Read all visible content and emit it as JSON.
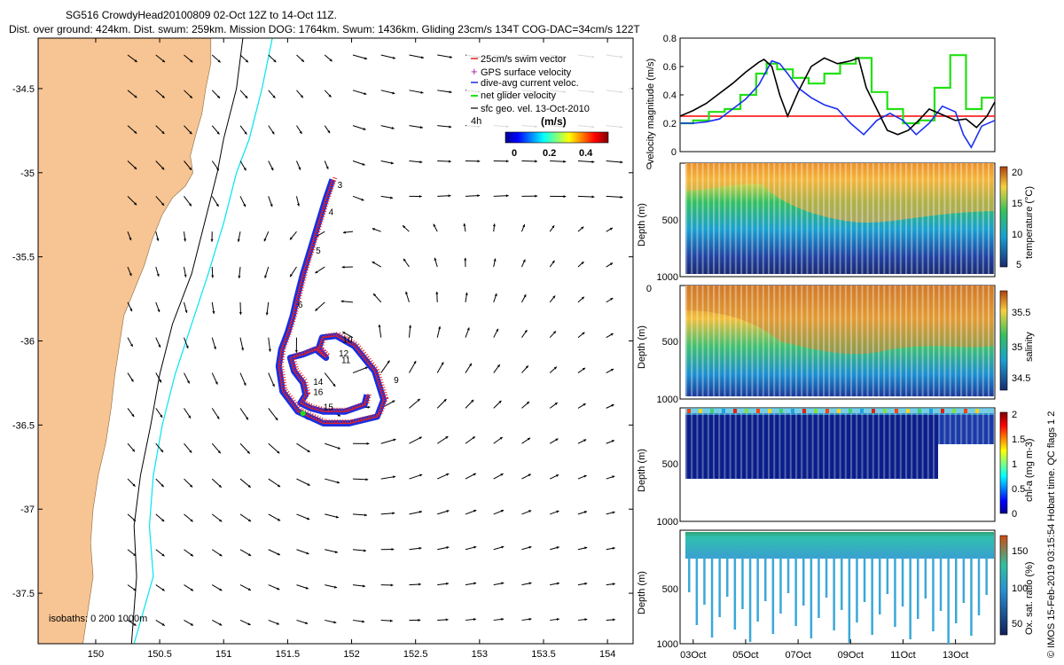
{
  "header": {
    "title_line1": "SG516 CrowdyHead20100809 02-Oct 12Z to 14-Oct 11Z.",
    "title_line2": "Dist. over ground: 424km. Dist. swum: 259km. Mission DOG: 1764km. Swum: 1436km. Gliding 23cm/s 134T COG-DAC=34cm/s 122T"
  },
  "colors": {
    "land": "#f7c493",
    "track": "#e8201c",
    "dive_avg": "#1a2fe0",
    "gps": "#a020a0",
    "net": "#22e014",
    "isobath_200": "#000000",
    "isobath_1000": "#00e5f0",
    "velocity_black": "#000000",
    "velocity_blue": "#1b2ef0",
    "velocity_green": "#22e014",
    "velocity_red": "#ff0000"
  },
  "chart_data": [
    {
      "type": "scatter",
      "name_role": "map",
      "xlim": [
        149.55,
        154.2
      ],
      "ylim": [
        -37.8,
        -34.2
      ],
      "x_ticks": [
        150,
        150.5,
        151,
        151.5,
        152,
        152.5,
        153,
        153.5,
        154
      ],
      "x_tick_labels": [
        "150",
        "150.5",
        "151",
        "151.5",
        "152",
        "152.5",
        "153",
        "153.5",
        "154"
      ],
      "y_ticks": [
        -34.5,
        -35,
        -35.5,
        -36,
        -36.5,
        -37,
        -37.5
      ],
      "y_tick_labels": [
        "-34.5",
        "-35",
        "-35.5",
        "-36",
        "-36.5",
        "-37",
        "-37.5"
      ],
      "legend": {
        "placement": "top-right",
        "entries": [
          {
            "label": "25cm/s swim vector",
            "color": "#e8201c"
          },
          {
            "label": "GPS surface velocity",
            "color": "#a020a0"
          },
          {
            "label": "dive-avg current veloc.",
            "color": "#1a2fe0"
          },
          {
            "label": "net glider velocity",
            "color": "#22e014"
          },
          {
            "label": "sfc geo. vel. 13-Oct-2010",
            "color": "#000000"
          }
        ],
        "prefix": "4h",
        "colorbar_title": "(m/s)",
        "colorbar_ticks": [
          "0",
          "0.2",
          "0.4"
        ]
      },
      "isobaths_label": "isobaths: 0   200  1000m",
      "coast": [
        [
          149.55,
          -34.2
        ],
        [
          150.9,
          -34.2
        ],
        [
          150.9,
          -34.35
        ],
        [
          150.86,
          -34.5
        ],
        [
          150.83,
          -34.65
        ],
        [
          150.78,
          -34.78
        ],
        [
          150.74,
          -34.9
        ],
        [
          150.76,
          -35.0
        ],
        [
          150.7,
          -35.08
        ],
        [
          150.6,
          -35.15
        ],
        [
          150.52,
          -35.25
        ],
        [
          150.44,
          -35.4
        ],
        [
          150.38,
          -35.55
        ],
        [
          150.3,
          -35.7
        ],
        [
          150.22,
          -35.85
        ],
        [
          150.19,
          -36.0
        ],
        [
          150.15,
          -36.2
        ],
        [
          150.12,
          -36.4
        ],
        [
          150.08,
          -36.6
        ],
        [
          150.02,
          -36.8
        ],
        [
          149.98,
          -37.0
        ],
        [
          149.96,
          -37.2
        ],
        [
          149.98,
          -37.4
        ],
        [
          149.95,
          -37.55
        ],
        [
          149.92,
          -37.7
        ],
        [
          149.9,
          -37.8
        ],
        [
          149.55,
          -37.8
        ]
      ],
      "isobath_200": [
        [
          151.15,
          -34.2
        ],
        [
          151.1,
          -34.5
        ],
        [
          151.0,
          -34.8
        ],
        [
          150.95,
          -35.0
        ],
        [
          150.85,
          -35.3
        ],
        [
          150.75,
          -35.6
        ],
        [
          150.6,
          -35.9
        ],
        [
          150.5,
          -36.2
        ],
        [
          150.43,
          -36.5
        ],
        [
          150.35,
          -36.8
        ],
        [
          150.3,
          -37.1
        ],
        [
          150.32,
          -37.4
        ],
        [
          150.28,
          -37.8
        ]
      ],
      "isobath_1000": [
        [
          151.38,
          -34.2
        ],
        [
          151.3,
          -34.5
        ],
        [
          151.2,
          -34.8
        ],
        [
          151.1,
          -35.0
        ],
        [
          151.0,
          -35.3
        ],
        [
          150.88,
          -35.6
        ],
        [
          150.75,
          -35.9
        ],
        [
          150.62,
          -36.2
        ],
        [
          150.52,
          -36.5
        ],
        [
          150.45,
          -36.8
        ],
        [
          150.42,
          -37.1
        ],
        [
          150.45,
          -37.4
        ],
        [
          150.3,
          -37.8
        ]
      ],
      "track": [
        [
          151.85,
          -35.04
        ],
        [
          151.8,
          -35.15
        ],
        [
          151.74,
          -35.3
        ],
        [
          151.68,
          -35.45
        ],
        [
          151.62,
          -35.6
        ],
        [
          151.57,
          -35.75
        ],
        [
          151.54,
          -35.85
        ],
        [
          151.5,
          -35.95
        ],
        [
          151.45,
          -36.05
        ],
        [
          151.43,
          -36.15
        ],
        [
          151.46,
          -36.3
        ],
        [
          151.58,
          -36.42
        ],
        [
          151.78,
          -36.49
        ],
        [
          151.98,
          -36.49
        ],
        [
          152.2,
          -36.45
        ],
        [
          152.25,
          -36.35
        ],
        [
          152.18,
          -36.18
        ],
        [
          152.02,
          -36.03
        ],
        [
          151.88,
          -35.97
        ],
        [
          151.77,
          -35.98
        ],
        [
          151.74,
          -36.05
        ],
        [
          151.8,
          -36.1
        ],
        [
          151.72,
          -36.05
        ],
        [
          151.62,
          -36.08
        ],
        [
          151.52,
          -36.1
        ],
        [
          151.55,
          -36.18
        ],
        [
          151.62,
          -36.25
        ],
        [
          151.64,
          -36.32
        ],
        [
          151.6,
          -36.37
        ],
        [
          151.68,
          -36.4
        ],
        [
          151.78,
          -36.42
        ],
        [
          151.95,
          -36.42
        ],
        [
          152.1,
          -36.38
        ],
        [
          152.12,
          -36.32
        ]
      ],
      "day_labels": [
        {
          "text": "3",
          "x": 151.89,
          "y": -35.07
        },
        {
          "text": "4",
          "x": 151.82,
          "y": -35.23
        },
        {
          "text": "5",
          "x": 151.72,
          "y": -35.46
        },
        {
          "text": "6",
          "x": 151.58,
          "y": -35.78
        },
        {
          "text": "9",
          "x": 152.33,
          "y": -36.23
        },
        {
          "text": "10",
          "x": 151.93,
          "y": -35.99
        },
        {
          "text": "11",
          "x": 151.92,
          "y": -36.11
        },
        {
          "text": "12",
          "x": 151.9,
          "y": -36.07
        },
        {
          "text": "14",
          "x": 151.7,
          "y": -36.24
        },
        {
          "text": "15",
          "x": 151.78,
          "y": -36.39
        },
        {
          "text": "16",
          "x": 151.7,
          "y": -36.3
        }
      ]
    },
    {
      "type": "line",
      "name_role": "velocity",
      "ylabel": "velocity magnitude (m/s)",
      "ylim": [
        0,
        0.8
      ],
      "y_ticks": [
        "0",
        "0.2",
        "0.4",
        "0.6",
        "0.8"
      ],
      "xlim": [
        2.5,
        14.5
      ],
      "series": [
        {
          "color": "#000000",
          "x": [
            2.5,
            3.0,
            3.5,
            4.0,
            4.5,
            5.0,
            5.5,
            5.7,
            6.0,
            6.3,
            6.6,
            7.0,
            7.5,
            8.0,
            8.5,
            9.0,
            9.3,
            9.6,
            10.0,
            10.4,
            10.8,
            11.2,
            11.6,
            12.0,
            12.5,
            13.0,
            13.4,
            13.8,
            14.2,
            14.5
          ],
          "y": [
            0.25,
            0.29,
            0.34,
            0.41,
            0.48,
            0.56,
            0.63,
            0.65,
            0.6,
            0.4,
            0.25,
            0.42,
            0.6,
            0.66,
            0.62,
            0.64,
            0.66,
            0.45,
            0.3,
            0.15,
            0.12,
            0.15,
            0.22,
            0.3,
            0.26,
            0.22,
            0.23,
            0.17,
            0.25,
            0.35
          ]
        },
        {
          "color": "#1b2ef0",
          "x": [
            2.5,
            3.0,
            3.5,
            4.0,
            4.5,
            5.0,
            5.5,
            6.0,
            6.3,
            6.6,
            7.0,
            7.5,
            8.0,
            8.5,
            9.0,
            9.5,
            10.0,
            10.5,
            11.0,
            11.5,
            12.0,
            12.5,
            13.0,
            13.3,
            13.6,
            14.0,
            14.5
          ],
          "y": [
            0.2,
            0.2,
            0.21,
            0.23,
            0.3,
            0.37,
            0.47,
            0.64,
            0.62,
            0.55,
            0.45,
            0.38,
            0.33,
            0.3,
            0.2,
            0.12,
            0.22,
            0.27,
            0.22,
            0.12,
            0.2,
            0.32,
            0.28,
            0.12,
            0.03,
            0.18,
            0.22
          ]
        },
        {
          "color": "#ff0000",
          "x": [
            2.5,
            14.5
          ],
          "y": [
            0.25,
            0.25
          ]
        },
        {
          "color": "#22e014",
          "x": [
            2.5,
            3.0,
            3.0,
            3.6,
            3.6,
            4.2,
            4.2,
            4.8,
            4.8,
            5.4,
            5.4,
            5.8,
            5.8,
            6.2,
            6.2,
            6.8,
            6.8,
            7.4,
            7.4,
            8.0,
            8.0,
            8.6,
            8.6,
            9.2,
            9.2,
            9.8,
            9.8,
            10.4,
            10.4,
            11.0,
            11.0,
            11.6,
            11.6,
            12.2,
            12.2,
            12.8,
            12.8,
            13.4,
            13.4,
            14.0,
            14.0,
            14.5
          ],
          "y": [
            0.2,
            0.2,
            0.22,
            0.22,
            0.28,
            0.28,
            0.3,
            0.3,
            0.4,
            0.4,
            0.55,
            0.55,
            0.62,
            0.62,
            0.58,
            0.58,
            0.52,
            0.52,
            0.48,
            0.48,
            0.55,
            0.55,
            0.62,
            0.62,
            0.66,
            0.66,
            0.42,
            0.42,
            0.3,
            0.3,
            0.2,
            0.2,
            0.22,
            0.22,
            0.45,
            0.45,
            0.68,
            0.68,
            0.3,
            0.3,
            0.38,
            0.38
          ]
        }
      ]
    },
    {
      "type": "heatmap",
      "name_role": "temperature",
      "ylabel": "Depth (m)",
      "y_ticks": [
        "0",
        "500",
        "1000"
      ],
      "colorbar_label": "temperature (°C)",
      "colorbar_ticks": [
        "20",
        "15",
        "10",
        "5"
      ]
    },
    {
      "type": "heatmap",
      "name_role": "salinity",
      "ylabel": "Depth (m)",
      "y_ticks": [
        "0",
        "500",
        "1000"
      ],
      "colorbar_label": "salinity",
      "colorbar_ticks": [
        "35.5",
        "35",
        "34.5"
      ]
    },
    {
      "type": "heatmap",
      "name_role": "chla",
      "ylabel": "Depth (m)",
      "y_ticks": [
        "0",
        "500",
        "1000"
      ],
      "colorbar_label": "chl-a (mg m-3)",
      "colorbar_ticks": [
        "2",
        "1.5",
        "1",
        "0.5",
        "0"
      ]
    },
    {
      "type": "heatmap",
      "name_role": "oxygen",
      "ylabel": "Depth (m)",
      "y_ticks": [
        "0",
        "500",
        "1000"
      ],
      "colorbar_label": "Ox. sat. ratio (%)",
      "colorbar_ticks": [
        "150",
        "100",
        "50"
      ],
      "x_tick_labels": [
        "03Oct",
        "05Oct",
        "07Oct",
        "09Oct",
        "11Oct",
        "13Oct"
      ]
    }
  ],
  "footer": {
    "credit": "© IMOS 15-Feb-2019 03:15:54 Hobart time. QC flags 1  2"
  }
}
